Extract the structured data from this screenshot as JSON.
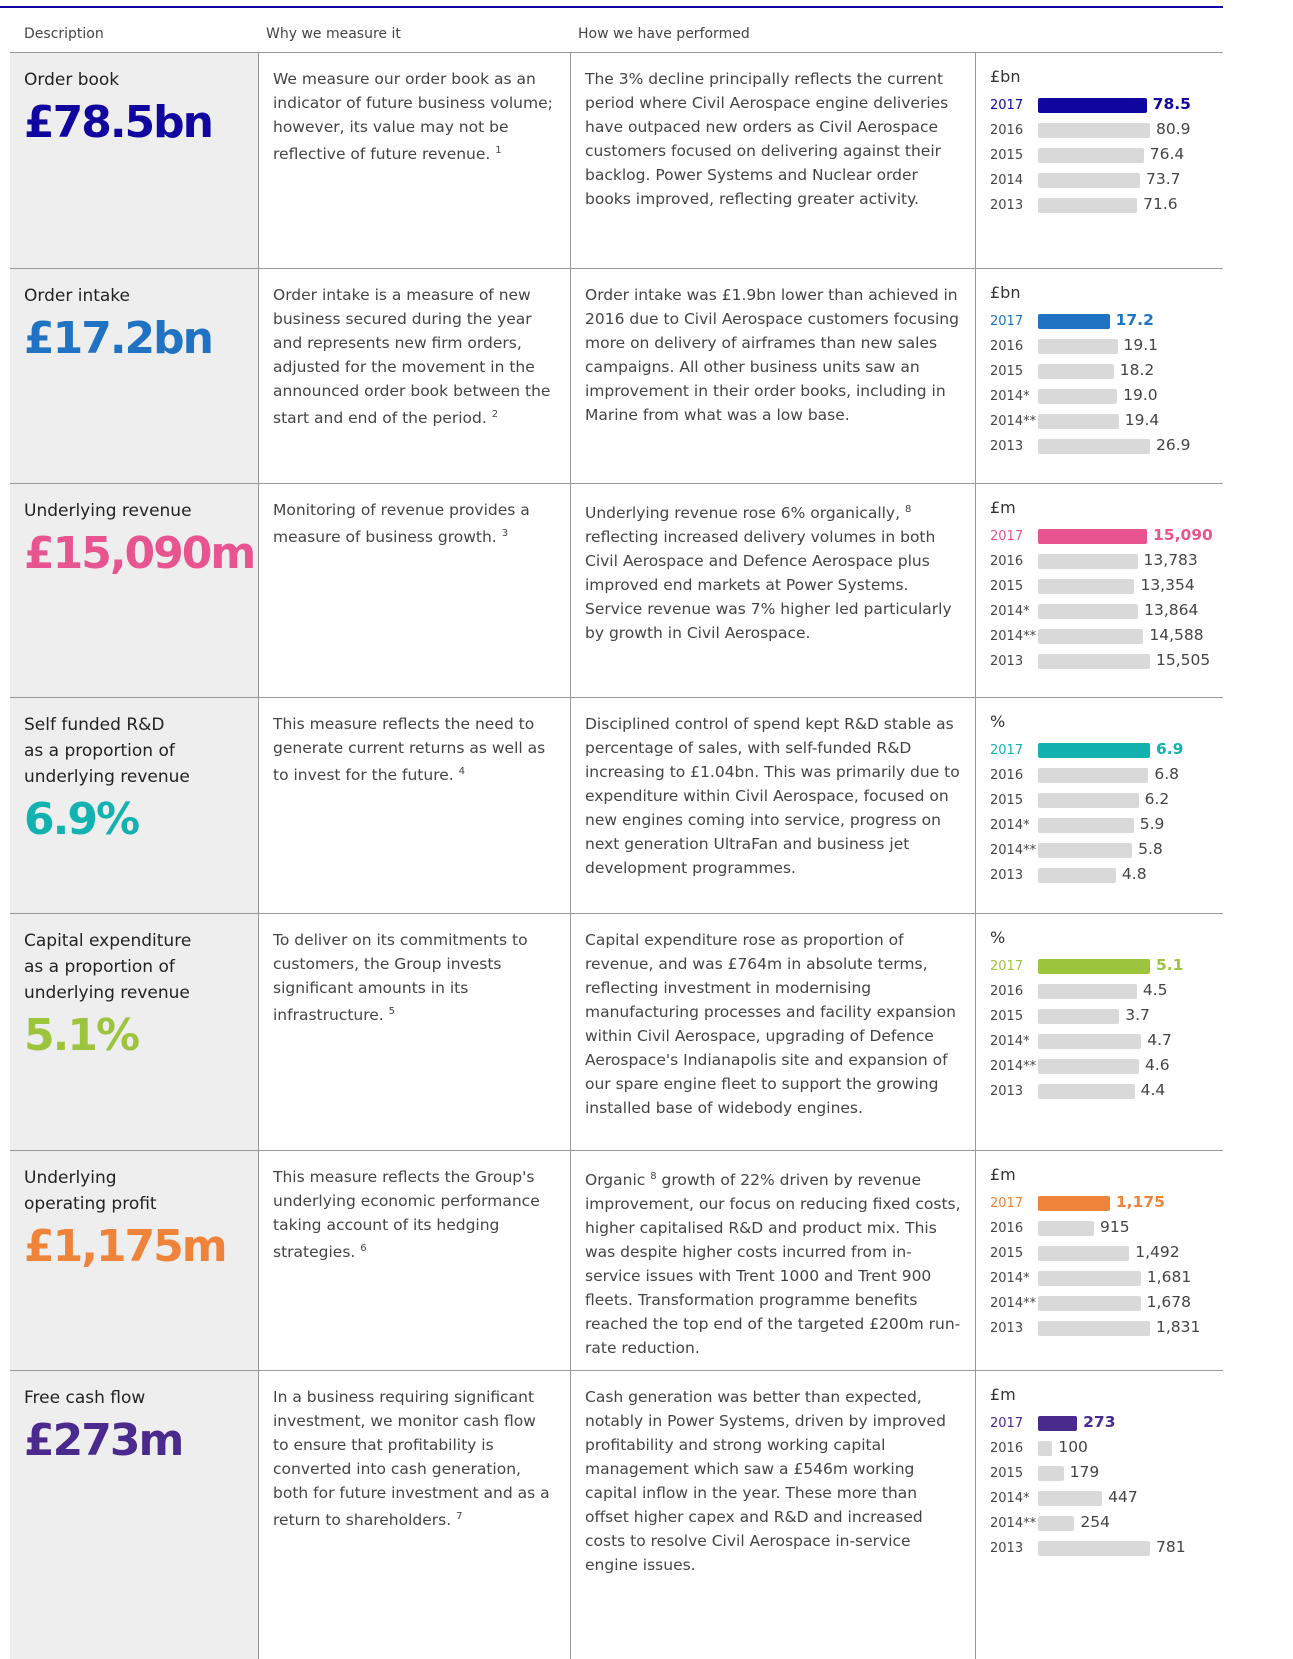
{
  "header": {
    "columns": [
      "Description",
      "Why we measure it",
      "How we have performed"
    ]
  },
  "rows": [
    {
      "name": "Order book",
      "value": "£78.5bn",
      "why": [
        {
          "text": "We measure our order book as an indicator of future business volume; however, its value may not be reflective of future revenue."
        },
        {
          "note": "1"
        }
      ],
      "how": [
        {
          "text": "The 3% decline principally reflects the current period where Civil Aerospace engine deliveries have outpaced new orders as Civil Aerospace customers focused on delivering against their backlog. Power Systems and Nuclear order books improved, reflecting greater activity."
        }
      ],
      "chart": {
        "unit": "£bn",
        "color": "#10069f",
        "categories": [
          "2017",
          "2016",
          "2015",
          "2014",
          "2013"
        ],
        "values": [
          78.5,
          80.9,
          76.4,
          73.7,
          71.6
        ]
      }
    },
    {
      "name": "Order intake",
      "value": "£17.2bn",
      "why": [
        {
          "text": "Order intake is a measure of new business secured during the year and represents new firm orders, adjusted for the movement in the announced order book between the start and end of the period."
        },
        {
          "note": "2"
        }
      ],
      "how": [
        {
          "text": "Order intake was £1.9bn lower than achieved in 2016 due to Civil Aerospace customers focusing more on delivery of airframes than new sales campaigns. All other business units saw an improvement in their order books, including in Marine from what was a low base."
        }
      ],
      "chart": {
        "unit": "£bn",
        "color": "#1f73c2",
        "categories": [
          "2017",
          "2016",
          "2015",
          "2014*",
          "2014**",
          "2013"
        ],
        "values": [
          17.2,
          19.1,
          18.2,
          19,
          19.4,
          26.9
        ],
        "value_labels": [
          "17.2",
          "19.1",
          "18.2",
          "19.0",
          "19.4",
          "26.9"
        ]
      }
    },
    {
      "name": "Underlying revenue",
      "value": "£15,090m",
      "why": [
        {
          "text": "Monitoring of revenue provides a measure of business growth."
        },
        {
          "note": "3"
        }
      ],
      "how": [
        {
          "text": "Underlying revenue rose 6% organically,"
        },
        {
          "note": "8"
        },
        {
          "text": "reflecting increased delivery volumes in both Civil Aerospace and Defence Aerospace plus improved end markets at Power Systems. Service revenue was 7% higher led particularly by growth in Civil Aerospace."
        }
      ],
      "chart": {
        "unit": "£m",
        "color": "#e8548f",
        "categories": [
          "2017",
          "2016",
          "2015",
          "2014*",
          "2014**",
          "2013"
        ],
        "values": [
          15090,
          13783,
          13354,
          13864,
          14588,
          15505
        ],
        "value_labels": [
          "15,090",
          "13,783",
          "13,354",
          "13,864",
          "14,588",
          "15,505"
        ]
      }
    },
    {
      "name": "Self funded R&D\nas a proportion of\nunderlying revenue",
      "value": "6.9%",
      "why": [
        {
          "text": "This measure reflects the need to generate current returns as well as to invest for the future."
        },
        {
          "note": "4"
        }
      ],
      "how": [
        {
          "text": "Disciplined control of spend kept R&D stable as percentage of sales, with self-funded R&D increasing to £1.04bn. This was primarily due to expenditure within Civil Aerospace, focused on new engines coming into service, progress on next generation UltraFan and business jet development programmes."
        }
      ],
      "chart": {
        "unit": "%",
        "color": "#12b2b0",
        "categories": [
          "2017",
          "2016",
          "2015",
          "2014*",
          "2014**",
          "2013"
        ],
        "values": [
          6.9,
          6.8,
          6.2,
          5.9,
          5.8,
          4.8
        ]
      }
    },
    {
      "name": "Capital expenditure\nas a proportion of\nunderlying revenue",
      "value": "5.1%",
      "why": [
        {
          "text": "To deliver on its commitments to customers, the Group invests significant amounts in its infrastructure."
        },
        {
          "note": "5"
        }
      ],
      "how": [
        {
          "text": "Capital expenditure rose as proportion of revenue, and was £764m in absolute terms, reflecting investment in modernising manufacturing processes and facility expansion within Civil Aerospace, upgrading of Defence Aerospace's Indianapolis site and expansion of our spare engine fleet to support the growing installed base of widebody engines."
        }
      ],
      "chart": {
        "unit": "%",
        "color": "#9cc43d",
        "categories": [
          "2017",
          "2016",
          "2015",
          "2014*",
          "2014**",
          "2013"
        ],
        "values": [
          5.1,
          4.5,
          3.7,
          4.7,
          4.6,
          4.4
        ]
      }
    },
    {
      "name": "Underlying\noperating profit",
      "value": "£1,175m",
      "why": [
        {
          "text": "This measure reflects the Group's underlying economic performance taking account of its hedging strategies."
        },
        {
          "note": "6"
        }
      ],
      "how": [
        {
          "text": "Organic"
        },
        {
          "note": "8"
        },
        {
          "text": "growth of 22% driven by revenue improvement, our focus on reducing fixed costs, higher capitalised R&D and product mix. This was despite higher costs incurred from in-service issues with Trent 1000 and Trent 900 fleets. Transformation programme benefits reached the top end of the targeted £200m run-rate reduction."
        }
      ],
      "chart": {
        "unit": "£m",
        "color": "#f0833a",
        "categories": [
          "2017",
          "2016",
          "2015",
          "2014*",
          "2014**",
          "2013"
        ],
        "values": [
          1175,
          915,
          1492,
          1681,
          1678,
          1831
        ],
        "value_labels": [
          "1,175",
          "915",
          "1,492",
          "1,681",
          "1,678",
          "1,831"
        ]
      }
    },
    {
      "name": "Free cash flow",
      "value": "£273m",
      "why": [
        {
          "text": "In a business requiring significant investment, we monitor cash flow to ensure that profitability is converted into cash generation, both for future investment and as a return to shareholders."
        },
        {
          "note": "7"
        }
      ],
      "how": [
        {
          "text": "Cash generation was better than expected, notably in Power Systems, driven by improved profitability and strong working capital management which saw a £546m working capital inflow in the year. These more than offset higher capex and R&D and increased costs to resolve Civil Aerospace in-service engine issues."
        }
      ],
      "chart": {
        "unit": "£m",
        "color": "#4a2a8c",
        "categories": [
          "2017",
          "2016",
          "2015",
          "2014*",
          "2014**",
          "2013"
        ],
        "values": [
          273,
          100,
          179,
          447,
          254,
          781
        ]
      }
    }
  ]
}
